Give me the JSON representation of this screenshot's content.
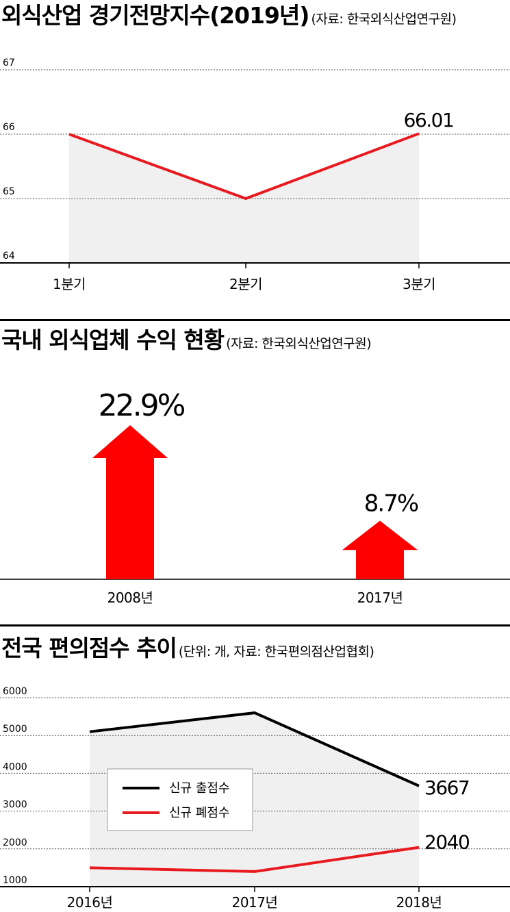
{
  "charts": {
    "c1": {
      "title": "외식산업 경기전망지수(2019년)",
      "source": "(자료: 한국외식산업연구원)",
      "chart_data": {
        "type": "line",
        "categories": [
          "1분기",
          "2분기",
          "3분기"
        ],
        "values": [
          66.0,
          65.0,
          66.01
        ],
        "value_labels": [
          "",
          "",
          "66.01"
        ],
        "ylim": [
          64,
          67
        ],
        "yticks": [
          "64",
          "65",
          "66",
          "67"
        ],
        "color": "#e8191f"
      }
    },
    "c2": {
      "title": "국내 외식업체 수익 현황",
      "source": "(자료: 한국외식산업연구원)",
      "chart_data": {
        "type": "bar",
        "categories": [
          "2008년",
          "2017년"
        ],
        "values": [
          22.9,
          8.7
        ],
        "value_labels": [
          "22.9%",
          "8.7%"
        ],
        "color": "#ff0000"
      }
    },
    "c3": {
      "title": "전국 편의점수 추이",
      "source": "(단위: 개, 자료: 한국편의점산업협회)",
      "chart_data": {
        "type": "line",
        "categories": [
          "2016년",
          "2017년",
          "2018년"
        ],
        "ylim": [
          1000,
          6000
        ],
        "yticks": [
          "1000",
          "2000",
          "3000",
          "4000",
          "5000",
          "6000"
        ],
        "series": [
          {
            "name": "신규 출점수",
            "values": [
              5100,
              5600,
              3667
            ],
            "end_label": "3667",
            "color": "#000000"
          },
          {
            "name": "신규 폐점수",
            "values": [
              1500,
              1400,
              2040
            ],
            "end_label": "2040",
            "color": "#e8191f"
          }
        ]
      }
    }
  }
}
